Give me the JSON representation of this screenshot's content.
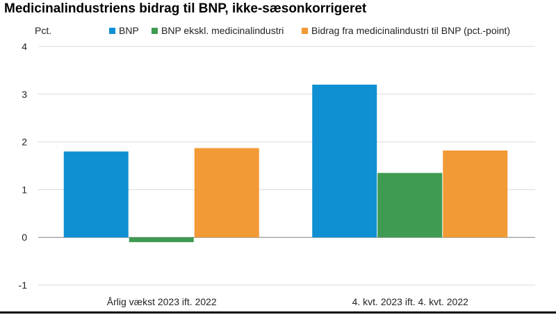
{
  "title": "Medicinalindustriens bidrag til BNP, ikke-sæsonkorrigeret",
  "chart_data": {
    "type": "bar",
    "title": "Medicinalindustriens bidrag til BNP, ikke-sæsonkorrigeret",
    "ylabel": "Pct.",
    "xlabel": "",
    "ylim": [
      -1,
      4
    ],
    "yticks": [
      -1,
      0,
      1,
      2,
      3,
      4
    ],
    "grid": true,
    "legend_position": "top",
    "categories": [
      "Årlig vækst 2023 ift. 2022",
      "4. kvt. 2023 ift. 4. kvt. 2022"
    ],
    "series": [
      {
        "name": "BNP",
        "color": "#0e90d2",
        "values": [
          1.8,
          3.2
        ]
      },
      {
        "name": "BNP ekskl. medicinalindustri",
        "color": "#3f9b52",
        "values": [
          -0.1,
          1.35
        ]
      },
      {
        "name": "Bidrag fra medicinalindustri til BNP (pct.-point)",
        "color": "#f29a35",
        "values": [
          1.87,
          1.82
        ]
      }
    ]
  }
}
